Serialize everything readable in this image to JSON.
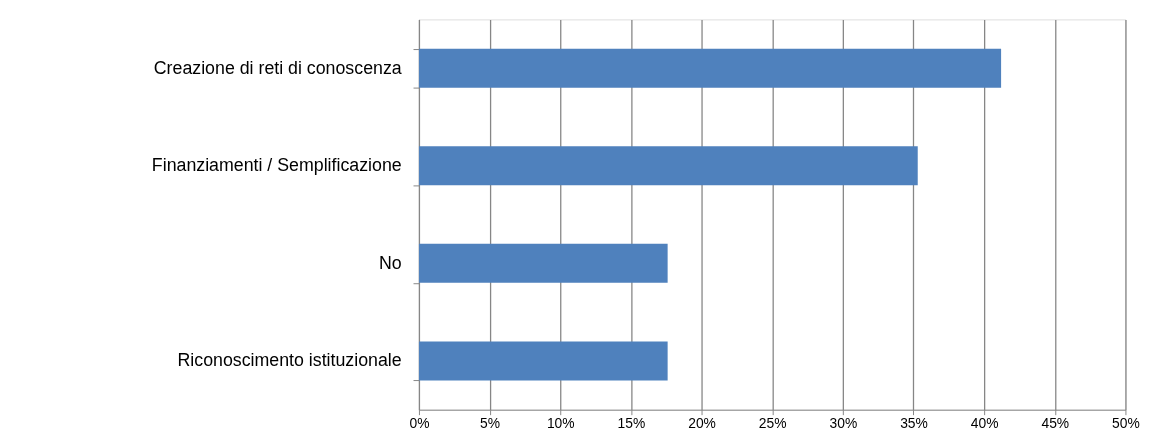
{
  "chart_data": {
    "type": "bar",
    "orientation": "horizontal",
    "categories": [
      "Creazione di reti di conoscenza",
      "Finanziamenti / Semplificazione",
      "No",
      "Riconoscimento istituzionale"
    ],
    "values": [
      41.2,
      35.3,
      17.6,
      17.6
    ],
    "color": "#4f81bd",
    "xlim": [
      0,
      50
    ],
    "xticks": [
      {
        "value": 0,
        "label": "0%"
      },
      {
        "value": 5,
        "label": "5%"
      },
      {
        "value": 10,
        "label": "10%"
      },
      {
        "value": 15,
        "label": "15%"
      },
      {
        "value": 20,
        "label": "20%"
      },
      {
        "value": 25,
        "label": "25%"
      },
      {
        "value": 30,
        "label": "30%"
      },
      {
        "value": 35,
        "label": "35%"
      },
      {
        "value": 40,
        "label": "40%"
      },
      {
        "value": 45,
        "label": "45%"
      },
      {
        "value": 50,
        "label": "50%"
      }
    ],
    "grid": "x"
  }
}
